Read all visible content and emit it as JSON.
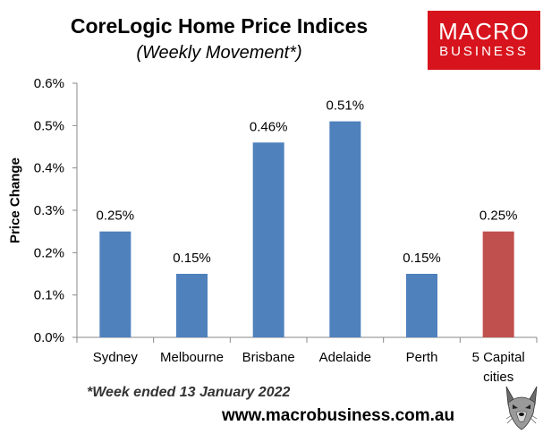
{
  "chart_data": {
    "type": "bar",
    "title": "CoreLogic Home Price Indices",
    "subtitle": "(Weekly Movement*)",
    "ylabel": "Price Change",
    "xlabel": "",
    "categories": [
      [
        "Sydney"
      ],
      [
        "Melbourne"
      ],
      [
        "Brisbane"
      ],
      [
        "Adelaide"
      ],
      [
        "Perth"
      ],
      [
        "5 Capital",
        "cities"
      ]
    ],
    "values": [
      0.25,
      0.15,
      0.46,
      0.51,
      0.15,
      0.25
    ],
    "data_labels": [
      "0.25%",
      "0.15%",
      "0.46%",
      "0.51%",
      "0.15%",
      "0.25%"
    ],
    "bar_colors": [
      "#4f81bd",
      "#4f81bd",
      "#4f81bd",
      "#4f81bd",
      "#4f81bd",
      "#c0504d"
    ],
    "ylim": [
      0,
      0.6
    ],
    "yticks": [
      0.0,
      0.1,
      0.2,
      0.3,
      0.4,
      0.5,
      0.6
    ],
    "ytick_labels": [
      "0.0%",
      "0.1%",
      "0.2%",
      "0.3%",
      "0.4%",
      "0.5%",
      "0.6%"
    ],
    "grid": false,
    "legend": "none"
  },
  "footnote": "*Week ended 13 January 2022",
  "logo": {
    "line1": "MACRO",
    "line2": "BUSINESS",
    "color": "#d7141d"
  },
  "website": "www.macrobusiness.com.au",
  "mascot_icon": "wolf-icon"
}
